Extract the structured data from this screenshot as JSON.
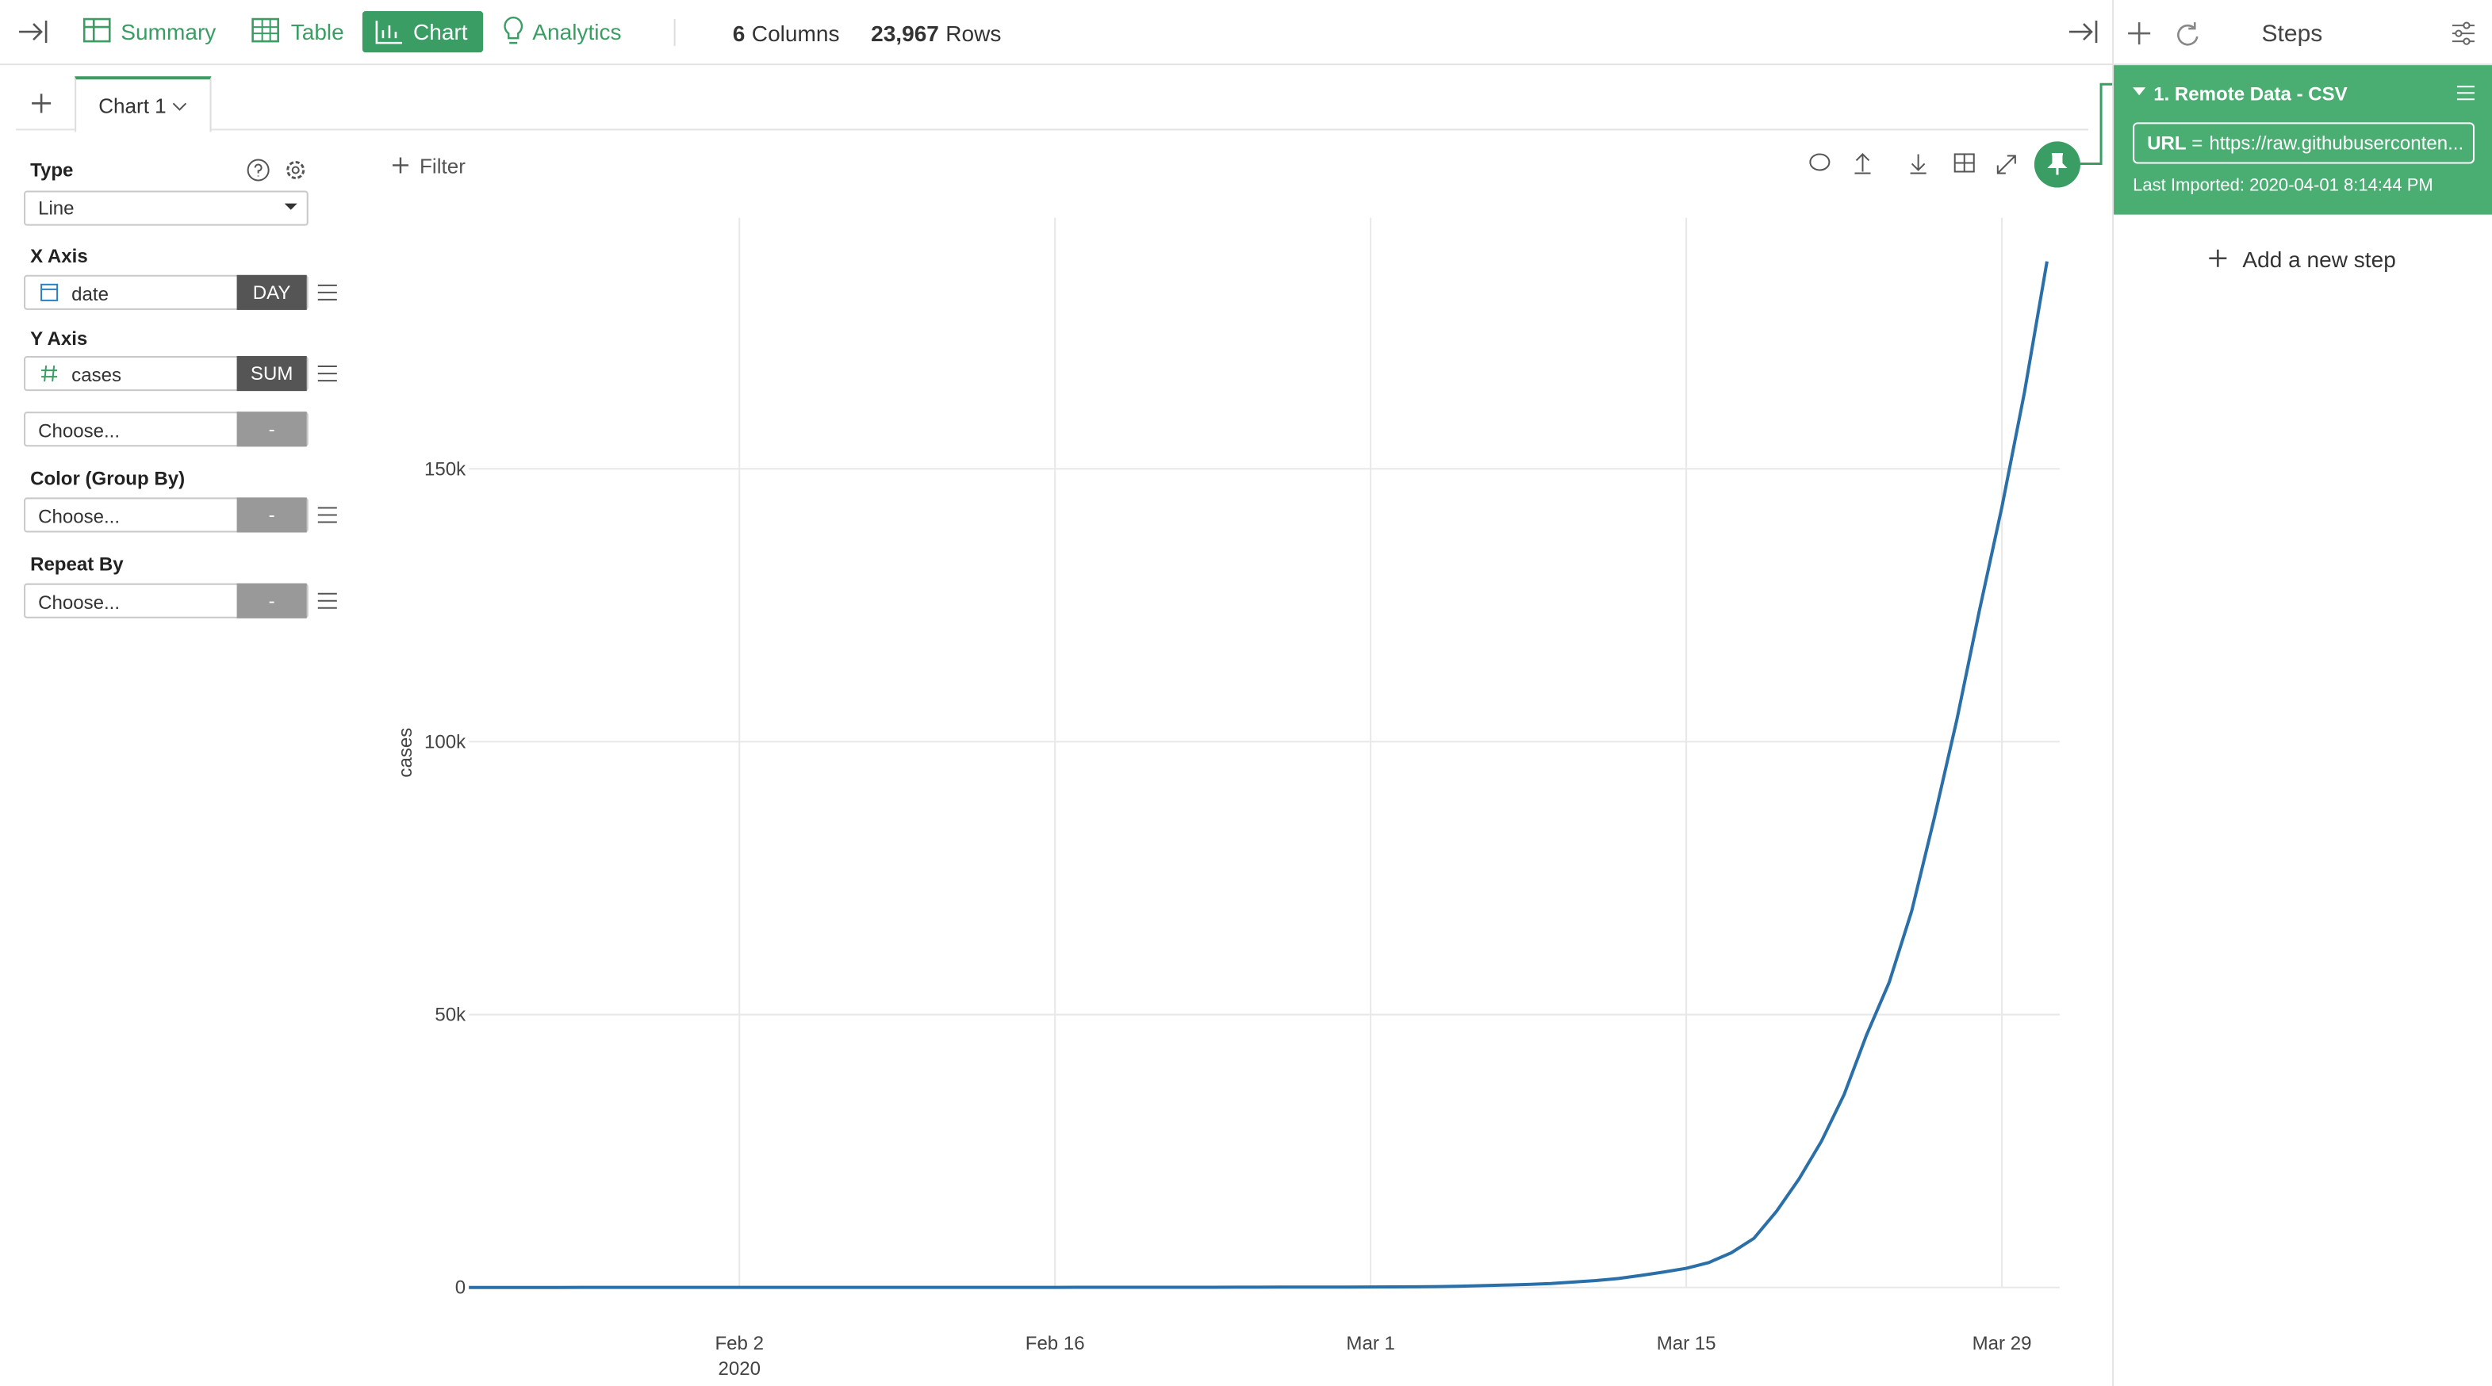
{
  "toolbar": {
    "tabs": [
      "Summary",
      "Table",
      "Chart",
      "Analytics"
    ],
    "columns_count": "6",
    "columns_label": "Columns",
    "rows_count": "23,967",
    "rows_label": "Rows"
  },
  "chart_tab": "Chart 1",
  "config": {
    "type_label": "Type",
    "type_value": "Line",
    "x_axis_label": "X Axis",
    "x_field": "date",
    "x_agg": "DAY",
    "y_axis_label": "Y Axis",
    "y_field": "cases",
    "y_agg": "SUM",
    "choose": "Choose...",
    "dash": "-",
    "color_label": "Color (Group By)",
    "repeat_label": "Repeat By"
  },
  "filter": "Filter",
  "steps": {
    "title": "Steps",
    "step_name": "1. Remote Data - CSV",
    "url_key": "URL",
    "url_eq": "=",
    "url_value": "https://raw.githubuserconten...",
    "last_imported": "Last Imported: 2020-04-01 8:14:44 PM",
    "add_step": "Add a new step"
  },
  "chart_data": {
    "type": "line",
    "y_label": "cases",
    "color": "#2a6fa8",
    "x_year_label": "2020",
    "x": [
      "2020-01-21",
      "2020-01-22",
      "2020-01-23",
      "2020-01-24",
      "2020-01-25",
      "2020-01-26",
      "2020-01-27",
      "2020-01-28",
      "2020-01-29",
      "2020-01-30",
      "2020-01-31",
      "2020-02-01",
      "2020-02-02",
      "2020-02-03",
      "2020-02-04",
      "2020-02-05",
      "2020-02-06",
      "2020-02-07",
      "2020-02-08",
      "2020-02-09",
      "2020-02-10",
      "2020-02-11",
      "2020-02-12",
      "2020-02-13",
      "2020-02-14",
      "2020-02-15",
      "2020-02-16",
      "2020-02-17",
      "2020-02-18",
      "2020-02-19",
      "2020-02-20",
      "2020-02-21",
      "2020-02-22",
      "2020-02-23",
      "2020-02-24",
      "2020-02-25",
      "2020-02-26",
      "2020-02-27",
      "2020-02-28",
      "2020-02-29",
      "2020-03-01",
      "2020-03-02",
      "2020-03-03",
      "2020-03-04",
      "2020-03-05",
      "2020-03-06",
      "2020-03-07",
      "2020-03-08",
      "2020-03-09",
      "2020-03-10",
      "2020-03-11",
      "2020-03-12",
      "2020-03-13",
      "2020-03-14",
      "2020-03-15",
      "2020-03-16",
      "2020-03-17",
      "2020-03-18",
      "2020-03-19",
      "2020-03-20",
      "2020-03-21",
      "2020-03-22",
      "2020-03-23",
      "2020-03-24",
      "2020-03-25",
      "2020-03-26",
      "2020-03-27",
      "2020-03-28",
      "2020-03-29",
      "2020-03-30",
      "2020-03-31"
    ],
    "values": [
      1,
      1,
      1,
      2,
      3,
      5,
      5,
      5,
      5,
      6,
      7,
      8,
      11,
      11,
      11,
      12,
      12,
      12,
      12,
      12,
      13,
      13,
      14,
      15,
      15,
      15,
      15,
      25,
      25,
      25,
      27,
      30,
      30,
      30,
      43,
      45,
      60,
      60,
      65,
      70,
      88,
      104,
      125,
      159,
      227,
      331,
      444,
      564,
      728,
      1000,
      1267,
      1645,
      2204,
      2826,
      3505,
      4563,
      6360,
      8998,
      13933,
      19874,
      26824,
      35339,
      46296,
      55904,
      69000,
      86000,
      104000,
      124000,
      143000,
      164000,
      188000
    ],
    "xlim": [
      "2020-01-21",
      "2020-03-31"
    ],
    "xticks": [
      {
        "value": "2020-02-02",
        "label": "Feb 2"
      },
      {
        "value": "2020-02-16",
        "label": "Feb 16"
      },
      {
        "value": "2020-03-01",
        "label": "Mar 1"
      },
      {
        "value": "2020-03-15",
        "label": "Mar 15"
      },
      {
        "value": "2020-03-29",
        "label": "Mar 29"
      }
    ],
    "ylim": [
      0,
      196000
    ],
    "yticks": [
      0,
      {
        "value": 50000,
        "label": "50k"
      },
      {
        "value": 100000,
        "label": "100k"
      },
      {
        "value": 150000,
        "label": "150k"
      }
    ],
    "grid": true
  }
}
